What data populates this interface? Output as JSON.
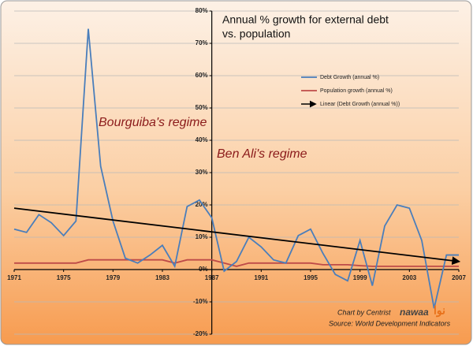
{
  "chart_data": {
    "type": "line",
    "title": [
      "Annual % growth for external debt",
      "vs. population"
    ],
    "x": [
      1971,
      1972,
      1973,
      1974,
      1975,
      1976,
      1977,
      1978,
      1979,
      1980,
      1981,
      1982,
      1983,
      1984,
      1985,
      1986,
      1987,
      1988,
      1989,
      1990,
      1991,
      1992,
      1993,
      1994,
      1995,
      1996,
      1997,
      1998,
      1999,
      2000,
      2001,
      2002,
      2003,
      2004,
      2005,
      2006,
      2007
    ],
    "series": [
      {
        "name": "Debt Growth (annual %)",
        "color": "#4a7ebb",
        "values": [
          12.5,
          11.5,
          17,
          14.5,
          10.5,
          15,
          74.5,
          32,
          15,
          3.5,
          2,
          4.5,
          7.5,
          1,
          19.5,
          21.5,
          16,
          -0.5,
          2.5,
          10,
          7,
          3,
          2,
          10.5,
          12.5,
          5,
          -1.5,
          -3.5,
          9,
          -5,
          13.5,
          20,
          19,
          9,
          -12,
          4.5,
          4.5
        ]
      },
      {
        "name": "Population growth (annual %)",
        "color": "#be4b48",
        "values": [
          2,
          2,
          2,
          2,
          2,
          2,
          3,
          3,
          3,
          3,
          3,
          3,
          3,
          2,
          3,
          3,
          3,
          2,
          1,
          2,
          2,
          2,
          2,
          2,
          2,
          1.5,
          1.5,
          1.5,
          1.2,
          1,
          1,
          1,
          1,
          1,
          1,
          1,
          1
        ]
      }
    ],
    "trendline": {
      "name": "Linear (Debt Growth (annual %))",
      "color": "#000000",
      "x": [
        1971,
        2007
      ],
      "values": [
        19,
        2.5
      ]
    },
    "xlim": [
      1971,
      2007
    ],
    "xticks": [
      1971,
      1975,
      1979,
      1983,
      1987,
      1991,
      1995,
      1999,
      2003,
      2007
    ],
    "ylim": [
      -20,
      80
    ],
    "yticks": [
      {
        "value": -20,
        "label": "-20%"
      },
      {
        "value": -10,
        "label": "-10%"
      },
      {
        "value": 0,
        "label": "0%"
      },
      {
        "value": 10,
        "label": "10%"
      },
      {
        "value": 20,
        "label": "20%"
      },
      {
        "value": 30,
        "label": "30%"
      },
      {
        "value": 40,
        "label": "40%"
      },
      {
        "value": 50,
        "label": "50%"
      },
      {
        "value": 60,
        "label": "60%"
      },
      {
        "value": 70,
        "label": "70%"
      },
      {
        "value": 80,
        "label": "80%"
      }
    ],
    "y_axis_at": 1987,
    "grid": true,
    "annotations": [
      "Bourguiba's regime",
      "Ben Ali's regime"
    ],
    "credit": "Chart by Centrist",
    "source": "Source: World Development Indicators",
    "logo": {
      "text": "nawaa",
      "arabic": "نوا"
    }
  }
}
